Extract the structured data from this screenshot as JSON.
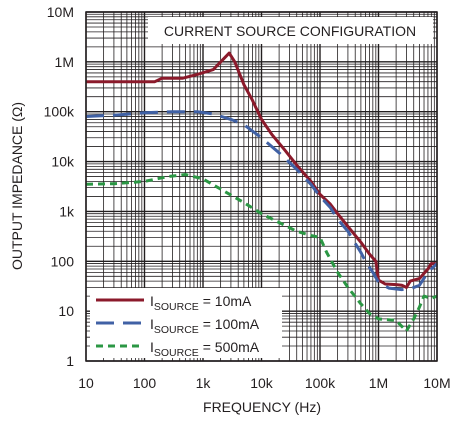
{
  "chart_data": {
    "type": "line",
    "title": "",
    "annotation": "CURRENT SOURCE CONFIGURATION",
    "xlabel": "FREQUENCY (Hz)",
    "ylabel": "OUTPUT IMPEDANCE (Ω)",
    "xscale": "log",
    "yscale": "log",
    "xlim": [
      10,
      10000000
    ],
    "ylim": [
      1,
      10000000
    ],
    "grid": true,
    "x_ticks": [
      {
        "value": 10,
        "label": "10"
      },
      {
        "value": 100,
        "label": "100"
      },
      {
        "value": 1000,
        "label": "1k"
      },
      {
        "value": 10000,
        "label": "10k"
      },
      {
        "value": 100000,
        "label": "100k"
      },
      {
        "value": 1000000,
        "label": "1M"
      },
      {
        "value": 10000000,
        "label": "10M"
      }
    ],
    "y_ticks": [
      {
        "value": 1,
        "label": "1"
      },
      {
        "value": 10,
        "label": "10"
      },
      {
        "value": 100,
        "label": "100"
      },
      {
        "value": 1000,
        "label": "1k"
      },
      {
        "value": 10000,
        "label": "10k"
      },
      {
        "value": 100000,
        "label": "100k"
      },
      {
        "value": 1000000,
        "label": "1M"
      },
      {
        "value": 10000000,
        "label": "10M"
      }
    ],
    "legend_position": "bottom-left",
    "series": [
      {
        "legend_main": "I",
        "legend_sub": "SOURCE",
        "legend_rest": " = 10mA",
        "color": "#8b1a2b",
        "dash": "solid",
        "points": [
          [
            10,
            400000
          ],
          [
            150,
            400000
          ],
          [
            200,
            470000
          ],
          [
            450,
            470000
          ],
          [
            800,
            560000
          ],
          [
            1500,
            700000
          ],
          [
            2800,
            1500000
          ],
          [
            3500,
            1000000
          ],
          [
            5000,
            350000
          ],
          [
            7000,
            170000
          ],
          [
            10000,
            70000
          ],
          [
            15000,
            35000
          ],
          [
            25000,
            17000
          ],
          [
            40000,
            8500
          ],
          [
            70000,
            4000
          ],
          [
            100000,
            2200
          ],
          [
            150000,
            1400
          ],
          [
            200000,
            900
          ],
          [
            300000,
            500
          ],
          [
            500000,
            240
          ],
          [
            700000,
            140
          ],
          [
            900000,
            100
          ],
          [
            1000000,
            42
          ],
          [
            1300000,
            35
          ],
          [
            2000000,
            34
          ],
          [
            2500000,
            33
          ],
          [
            3000000,
            30
          ],
          [
            3500000,
            40
          ],
          [
            5000000,
            45
          ],
          [
            7000000,
            70
          ],
          [
            8000000,
            90
          ],
          [
            10000000,
            90
          ]
        ]
      },
      {
        "legend_main": "I",
        "legend_sub": "SOURCE",
        "legend_rest": " = 100mA",
        "color": "#4061a5",
        "dash": "long-dash",
        "points": [
          [
            10,
            80000
          ],
          [
            30,
            85000
          ],
          [
            100,
            95000
          ],
          [
            300,
            100000
          ],
          [
            800,
            100000
          ],
          [
            1500,
            90000
          ],
          [
            3000,
            70000
          ],
          [
            5000,
            55000
          ],
          [
            10000,
            30000
          ],
          [
            20000,
            15000
          ],
          [
            40000,
            7000
          ],
          [
            70000,
            3500
          ],
          [
            100000,
            2000
          ],
          [
            150000,
            1200
          ],
          [
            200000,
            700
          ],
          [
            300000,
            400
          ],
          [
            400000,
            230
          ],
          [
            500000,
            150
          ],
          [
            600000,
            100
          ],
          [
            800000,
            60
          ],
          [
            1000000,
            38
          ],
          [
            1500000,
            29
          ],
          [
            2500000,
            27
          ],
          [
            3500000,
            28
          ],
          [
            5000000,
            33
          ],
          [
            7000000,
            60
          ],
          [
            10000000,
            90
          ]
        ]
      },
      {
        "legend_main": "I",
        "legend_sub": "SOURCE",
        "legend_rest": " = 500mA",
        "color": "#2b9744",
        "dash": "short-dash",
        "points": [
          [
            10,
            3500
          ],
          [
            30,
            3600
          ],
          [
            100,
            4000
          ],
          [
            250,
            5000
          ],
          [
            500,
            5500
          ],
          [
            1000,
            4500
          ],
          [
            2000,
            2800
          ],
          [
            5000,
            1500
          ],
          [
            10000,
            900
          ],
          [
            20000,
            600
          ],
          [
            40000,
            400
          ],
          [
            70000,
            330
          ],
          [
            100000,
            300
          ],
          [
            130000,
            150
          ],
          [
            200000,
            60
          ],
          [
            300000,
            30
          ],
          [
            500000,
            14
          ],
          [
            700000,
            9
          ],
          [
            1000000,
            7
          ],
          [
            2000000,
            6.5
          ],
          [
            3000000,
            4
          ],
          [
            4000000,
            7
          ],
          [
            5000000,
            12
          ],
          [
            6000000,
            20
          ],
          [
            8000000,
            18
          ],
          [
            10000000,
            20
          ]
        ]
      }
    ]
  }
}
